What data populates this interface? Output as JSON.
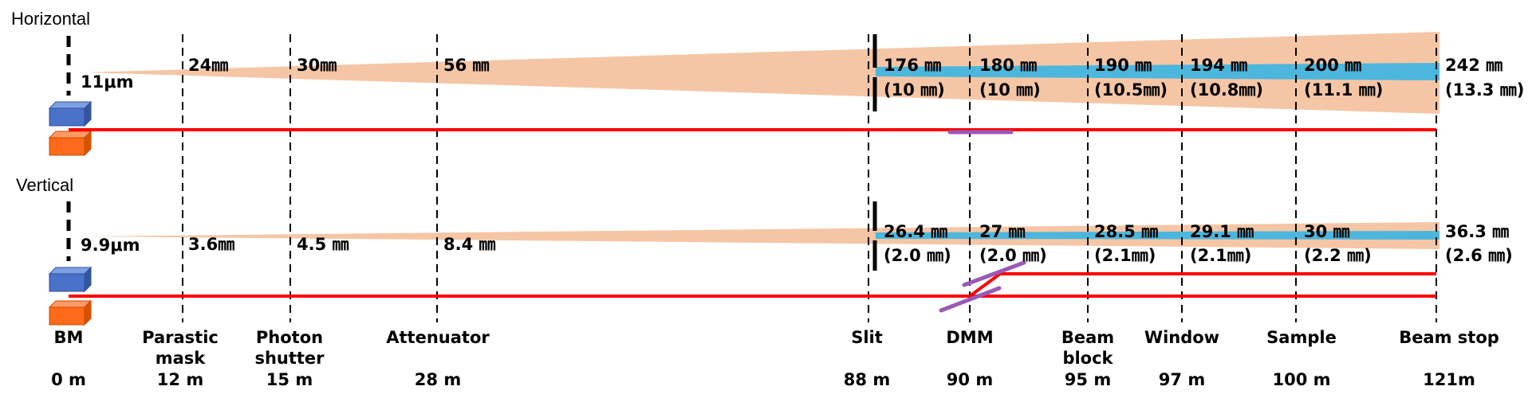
{
  "sections": {
    "horizontal": {
      "title": "Horizontal",
      "source_size": "11μm",
      "sizes": [
        {
          "component": "Parastic mask",
          "size": "24㎜",
          "detail": ""
        },
        {
          "component": "Photon shutter",
          "size": "30㎜",
          "detail": ""
        },
        {
          "component": "Attenuator",
          "size": "56 ㎜",
          "detail": ""
        },
        {
          "component": "Slit",
          "size": "176 ㎜",
          "detail": "(10 ㎜)"
        },
        {
          "component": "DMM",
          "size": "180 ㎜",
          "detail": "(10 ㎜)"
        },
        {
          "component": "Beam block",
          "size": "190 ㎜",
          "detail": "(10.5㎜)"
        },
        {
          "component": "Window",
          "size": "194 ㎜",
          "detail": "(10.8㎜)"
        },
        {
          "component": "Sample",
          "size": "200 ㎜",
          "detail": "(11.1 ㎜)"
        },
        {
          "component": "Beam stop",
          "size": "242 ㎜",
          "detail": "(13.3 ㎜)"
        }
      ]
    },
    "vertical": {
      "title": "Vertical",
      "source_size": "9.9μm",
      "sizes": [
        {
          "component": "Parastic mask",
          "size": "3.6㎜",
          "detail": ""
        },
        {
          "component": "Photon shutter",
          "size": "4.5 ㎜",
          "detail": ""
        },
        {
          "component": "Attenuator",
          "size": "8.4 ㎜",
          "detail": ""
        },
        {
          "component": "Slit",
          "size": "26.4 ㎜",
          "detail": "(2.0 ㎜)"
        },
        {
          "component": "DMM",
          "size": "27 ㎜",
          "detail": "(2.0 ㎜)"
        },
        {
          "component": "Beam block",
          "size": "28.5 ㎜",
          "detail": "(2.1㎜)"
        },
        {
          "component": "Window",
          "size": "29.1 ㎜",
          "detail": "(2.1㎜)"
        },
        {
          "component": "Sample",
          "size": "30 ㎜",
          "detail": "(2.2 ㎜)"
        },
        {
          "component": "Beam stop",
          "size": "36.3 ㎜",
          "detail": "(2.6 ㎜)"
        }
      ]
    }
  },
  "components": [
    {
      "name": [
        "BM"
      ],
      "distance": "0 m"
    },
    {
      "name": [
        "Parastic",
        "mask"
      ],
      "distance": "12 m"
    },
    {
      "name": [
        "Photon",
        "shutter"
      ],
      "distance": "15 m"
    },
    {
      "name": [
        "Attenuator"
      ],
      "distance": "28 m"
    },
    {
      "name": [
        "Slit"
      ],
      "distance": "88 m"
    },
    {
      "name": [
        "DMM"
      ],
      "distance": "90 m"
    },
    {
      "name": [
        "Beam",
        "block"
      ],
      "distance": "95 m"
    },
    {
      "name": [
        "Window"
      ],
      "distance": "97 m"
    },
    {
      "name": [
        "Sample"
      ],
      "distance": "100 m"
    },
    {
      "name": [
        "Beam stop"
      ],
      "distance": "121m"
    }
  ],
  "colors": {
    "fan": "#f5c6a5",
    "beam_core": "#4db6dc",
    "beamline": "#ff0000",
    "bm_blue": "#4a72c8",
    "bm_orange": "#ff6a1a",
    "mirror": "#9b59b6",
    "marker": "#000000"
  }
}
